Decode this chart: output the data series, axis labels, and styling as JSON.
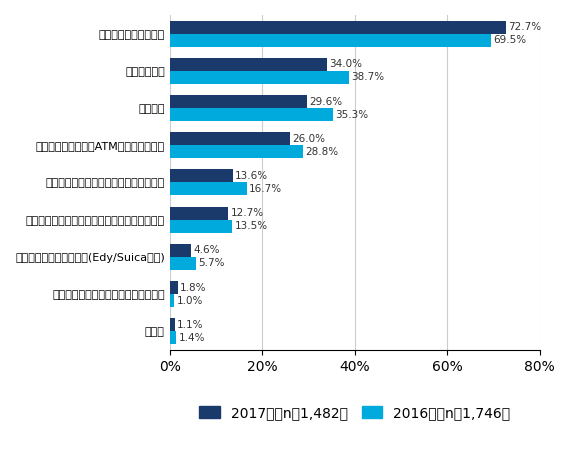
{
  "categories": [
    "クレジットカード払い",
    "コンビニ払い",
    "代金引換",
    "銀行・郵便局窓口・ATMでの振込・振替",
    "ネットバンキング・モバイルバンキング",
    "通信・プロバイダ料金への上乗せによる支払い",
    "電子マネーによる支払い(Edy/Suicaなど)",
    "現金書留・為替・小切手による支払い",
    "その他"
  ],
  "values_2017": [
    72.7,
    34.0,
    29.6,
    26.0,
    13.6,
    12.7,
    4.6,
    1.8,
    1.1
  ],
  "values_2016": [
    69.5,
    38.7,
    35.3,
    28.8,
    16.7,
    13.5,
    5.7,
    1.0,
    1.4
  ],
  "color_2017": "#1a3a6b",
  "color_2016": "#00aadd",
  "legend_2017": "2017年（n＝1,482）",
  "legend_2016": "2016年（n＝1,746）",
  "xlim": [
    0,
    80
  ],
  "xticks": [
    0,
    20,
    40,
    60,
    80
  ],
  "xticklabels": [
    "0%",
    "20%",
    "40%",
    "60%",
    "80%"
  ],
  "bar_height": 0.35,
  "label_fontsize": 7.5,
  "tick_fontsize": 8,
  "legend_fontsize": 9
}
